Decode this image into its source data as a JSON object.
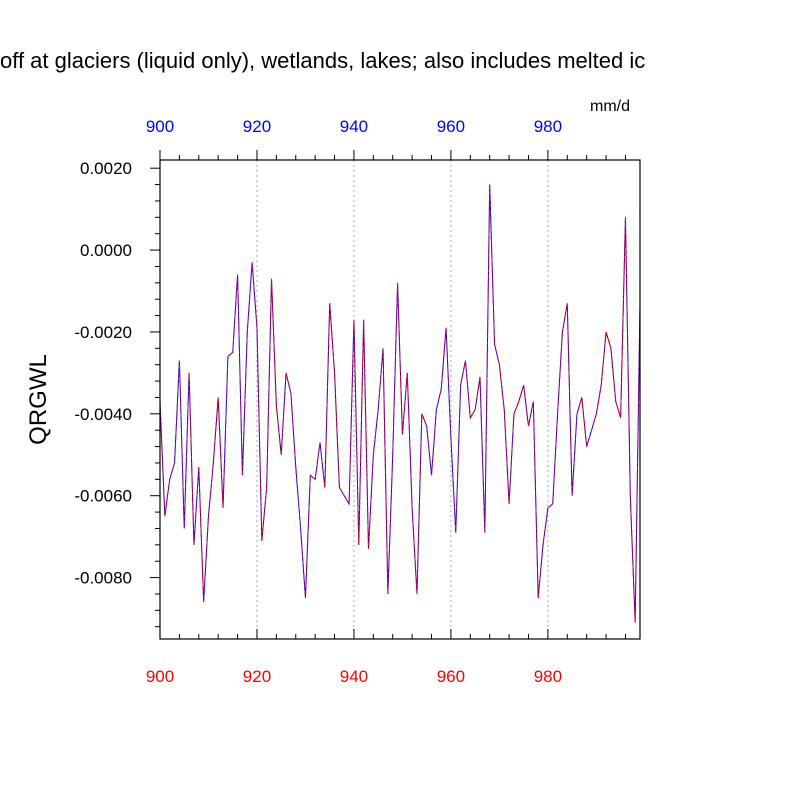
{
  "title": "off at glaciers (liquid only), wetlands, lakes; also includes melted ic",
  "units": "mm/d",
  "chart_data": {
    "type": "line",
    "title": "off at glaciers (liquid only), wetlands, lakes; also includes melted ic",
    "ylabel": "QRGWL",
    "xlabel": "",
    "units": "mm/d",
    "xlim": [
      900,
      999
    ],
    "ylim": [
      -0.0095,
      0.0022
    ],
    "grid": "vertical dotted at x ticks",
    "x_ticks": [
      900,
      920,
      940,
      960,
      980
    ],
    "x_tick_labels": [
      "900",
      "920",
      "940",
      "960",
      "980"
    ],
    "y_ticks": [
      0.002,
      0.0,
      -0.002,
      -0.004,
      -0.006,
      -0.008
    ],
    "y_tick_labels": [
      "0.0020",
      "0.0000",
      "-0.0020",
      "-0.0040",
      "-0.0060",
      "-0.0080"
    ],
    "colors": {
      "top_axis_labels": "#0000ff",
      "bottom_axis_labels": "#ff0000",
      "series_a": "#0000ff",
      "series_b": "#ff0000"
    },
    "x_start": 900,
    "series": [
      {
        "values": [
          -0.0037,
          -0.0065,
          -0.0056,
          -0.0052,
          -0.0027,
          -0.0068,
          -0.003,
          -0.0072,
          -0.0053,
          -0.0086,
          -0.0065,
          -0.0052,
          -0.0036,
          -0.0063,
          -0.0026,
          -0.0025,
          -0.0006,
          -0.0055,
          -0.002,
          -0.0003,
          -0.0019,
          -0.0071,
          -0.0058,
          -0.0007,
          -0.0038,
          -0.005,
          -0.003,
          -0.0035,
          -0.0053,
          -0.0068,
          -0.0085,
          -0.0055,
          -0.0056,
          -0.0047,
          -0.0058,
          -0.0013,
          -0.003,
          -0.0058,
          -0.006,
          -0.0062,
          -0.0017,
          -0.0072,
          -0.0017,
          -0.0073,
          -0.005,
          -0.0039,
          -0.0024,
          -0.0084,
          -0.005,
          -0.0008,
          -0.0045,
          -0.003,
          -0.0063,
          -0.0084,
          -0.004,
          -0.0043,
          -0.0055,
          -0.0039,
          -0.0034,
          -0.0019,
          -0.0046,
          -0.0069,
          -0.0033,
          -0.0027,
          -0.0041,
          -0.0039,
          -0.0031,
          -0.0069,
          0.0016,
          -0.0023,
          -0.0028,
          -0.0039,
          -0.0062,
          -0.004,
          -0.0037,
          -0.0033,
          -0.0043,
          -0.0037,
          -0.0085,
          -0.0072,
          -0.0063,
          -0.0062,
          -0.004,
          -0.002,
          -0.0013,
          -0.006,
          -0.004,
          -0.0036,
          -0.0048,
          -0.0044,
          -0.004,
          -0.0033,
          -0.002,
          -0.0024,
          -0.0037,
          -0.0041,
          0.0008,
          -0.006,
          -0.0091,
          -0.0013
        ]
      },
      {
        "values": [
          -0.0037,
          -0.0065,
          -0.0056,
          -0.0052,
          -0.0027,
          -0.0068,
          -0.003,
          -0.0072,
          -0.0053,
          -0.0086,
          -0.0065,
          -0.0052,
          -0.0036,
          -0.0063,
          -0.0026,
          -0.0025,
          -0.0006,
          -0.0055,
          -0.002,
          -0.0003,
          -0.0019,
          -0.0071,
          -0.0058,
          -0.0007,
          -0.0038,
          -0.005,
          -0.003,
          -0.0035,
          -0.0053,
          -0.0068,
          -0.0085,
          -0.0055,
          -0.0056,
          -0.0047,
          -0.0058,
          -0.0013,
          -0.003,
          -0.0058,
          -0.006,
          -0.0062,
          -0.0017,
          -0.0072,
          -0.0017,
          -0.0073,
          -0.005,
          -0.0039,
          -0.0024,
          -0.0084,
          -0.005,
          -0.0008,
          -0.0045,
          -0.003,
          -0.0063,
          -0.0084,
          -0.004,
          -0.0043,
          -0.0055,
          -0.0039,
          -0.0034,
          -0.0019,
          -0.0046,
          -0.0069,
          -0.0033,
          -0.0027,
          -0.0041,
          -0.0039,
          -0.0031,
          -0.0069,
          0.0016,
          -0.0023,
          -0.0028,
          -0.0039,
          -0.0062,
          -0.004,
          -0.0037,
          -0.0033,
          -0.0043,
          -0.0037,
          -0.0085,
          -0.0072,
          -0.0063,
          -0.0062,
          -0.004,
          -0.002,
          -0.0013,
          -0.006,
          -0.004,
          -0.0036,
          -0.0048,
          -0.0044,
          -0.004,
          -0.0033,
          -0.002,
          -0.0024,
          -0.0037,
          -0.0041,
          0.0008,
          -0.006,
          -0.0091,
          -0.0013
        ]
      }
    ]
  }
}
